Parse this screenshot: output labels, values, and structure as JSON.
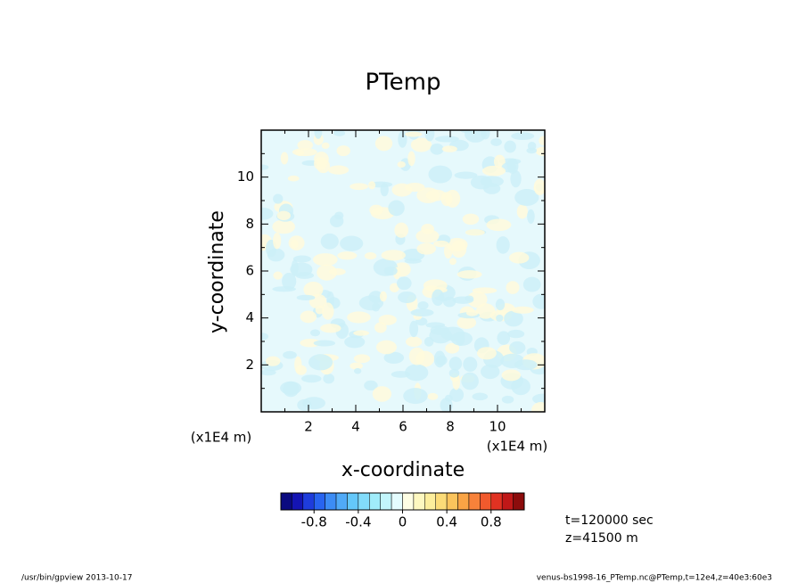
{
  "chart_data": {
    "type": "contour",
    "title": "PTemp",
    "xlabel": "x-coordinate",
    "ylabel": "y-coordinate",
    "xunit": "(x1E4 m)",
    "yunit": "(x1E4 m)",
    "xlim": [
      0,
      12
    ],
    "ylim": [
      0,
      12
    ],
    "xticks": [
      2,
      4,
      6,
      8,
      10
    ],
    "yticks": [
      2,
      4,
      6,
      8,
      10
    ],
    "xminorticks": [
      1,
      3,
      5,
      7,
      9,
      11
    ],
    "yminorticks": [
      1,
      3,
      5,
      7,
      9,
      11
    ],
    "colorbar": {
      "clim": [
        -1.1,
        1.1
      ],
      "ticks": [
        -0.8,
        -0.4,
        0,
        0.4,
        0.8
      ],
      "colors": [
        "#0a0a80",
        "#1414b4",
        "#1e3cdc",
        "#2864f0",
        "#3c8cf5",
        "#50aaf8",
        "#64c8fa",
        "#82dcfa",
        "#a0ecfa",
        "#c3f6fc",
        "#e4fcfe",
        "#fefee4",
        "#fef8c0",
        "#fdee9c",
        "#fcdc78",
        "#fbc45c",
        "#f9a445",
        "#f7823a",
        "#f15a2d",
        "#e13222",
        "#c01818",
        "#8c0c0c"
      ]
    },
    "annotations": [
      "t=120000 sec",
      "z=41500 m"
    ],
    "footer_left": "/usr/bin/gpview   2013-10-17",
    "footer_right": "venus-bs1998-16_PTemp.nc@PTemp,t=12e4,z=40e3:60e3"
  }
}
